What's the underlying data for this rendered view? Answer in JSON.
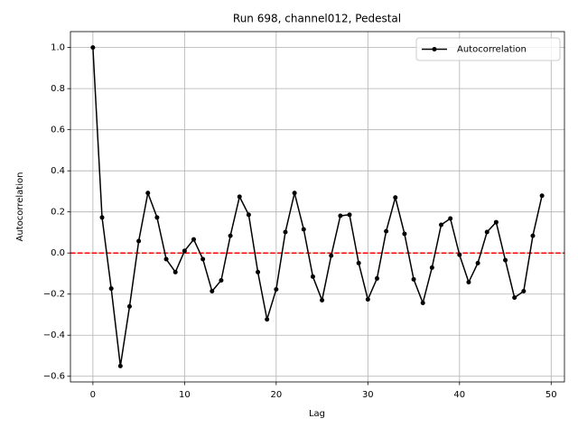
{
  "chart_data": {
    "type": "line",
    "title": "Run 698, channel012, Pedestal",
    "xlabel": "Lag",
    "ylabel": "Autocorrelation",
    "x": [
      0,
      1,
      2,
      3,
      4,
      5,
      6,
      7,
      8,
      9,
      10,
      11,
      12,
      13,
      14,
      15,
      16,
      17,
      18,
      19,
      20,
      21,
      22,
      23,
      24,
      25,
      26,
      27,
      28,
      29,
      30,
      31,
      32,
      33,
      34,
      35,
      36,
      37,
      38,
      39,
      40,
      41,
      42,
      43,
      44,
      45,
      46,
      47,
      48,
      49
    ],
    "series": [
      {
        "name": "Autocorrelation",
        "color": "#000000",
        "values": [
          1.0,
          0.173,
          -0.173,
          -0.55,
          -0.26,
          0.058,
          0.292,
          0.173,
          -0.03,
          -0.093,
          0.01,
          0.066,
          -0.03,
          -0.186,
          -0.133,
          0.084,
          0.274,
          0.186,
          -0.093,
          -0.323,
          -0.177,
          0.102,
          0.292,
          0.115,
          -0.115,
          -0.23,
          -0.013,
          0.181,
          0.186,
          -0.049,
          -0.226,
          -0.124,
          0.106,
          0.27,
          0.093,
          -0.128,
          -0.243,
          -0.071,
          0.137,
          0.168,
          -0.009,
          -0.142,
          -0.049,
          0.102,
          0.15,
          -0.035,
          -0.217,
          -0.186,
          0.084,
          0.279
        ]
      }
    ],
    "reference_line": {
      "value": 0,
      "color": "#ff0000"
    },
    "xlim": [
      -2.45,
      51.45
    ],
    "xticks": [
      0,
      10,
      20,
      30,
      40,
      50
    ],
    "ylim": [
      -0.6275,
      1.0775
    ],
    "yticks": [
      {
        "value": -0.6,
        "label": "−0.6"
      },
      {
        "value": -0.4,
        "label": "−0.4"
      },
      {
        "value": -0.2,
        "label": "−0.2"
      },
      {
        "value": 0,
        "label": "0.0"
      },
      {
        "value": 0.2,
        "label": "0.2"
      },
      {
        "value": 0.4,
        "label": "0.4"
      },
      {
        "value": 0.6,
        "label": "0.6"
      },
      {
        "value": 0.8,
        "label": "0.8"
      },
      {
        "value": 1.0,
        "label": "1.0"
      }
    ],
    "grid": true,
    "legend": "upper right"
  }
}
